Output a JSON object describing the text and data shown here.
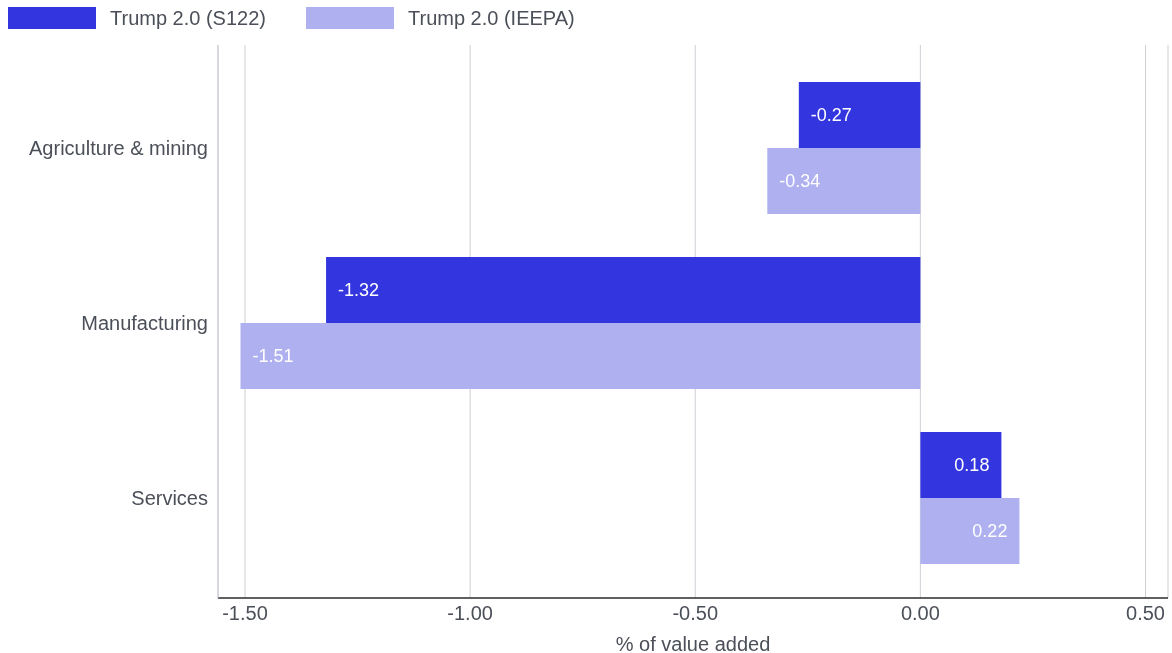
{
  "chart_data": {
    "type": "bar",
    "orientation": "horizontal",
    "categories": [
      "Agriculture & mining",
      "Manufacturing",
      "Services"
    ],
    "series": [
      {
        "name": "Trump 2.0 (S122)",
        "color": "#3336de",
        "values": [
          -0.27,
          -1.32,
          0.18
        ]
      },
      {
        "name": "Trump 2.0 (IEEPA)",
        "color": "#aeb0f0",
        "values": [
          -0.34,
          -1.51,
          0.22
        ]
      }
    ],
    "xlabel": "% of value added",
    "xlim": [
      -1.56,
      0.55
    ],
    "xticks": [
      {
        "value": -1.5,
        "label": "-1.50"
      },
      {
        "value": -1,
        "label": "-1.00"
      },
      {
        "value": -0.5,
        "label": "-0.50"
      },
      {
        "value": 0,
        "label": "0.00"
      },
      {
        "value": 0.5,
        "label": "0.50"
      }
    ],
    "grid": "x",
    "legend": "top left",
    "data_labels": true
  }
}
